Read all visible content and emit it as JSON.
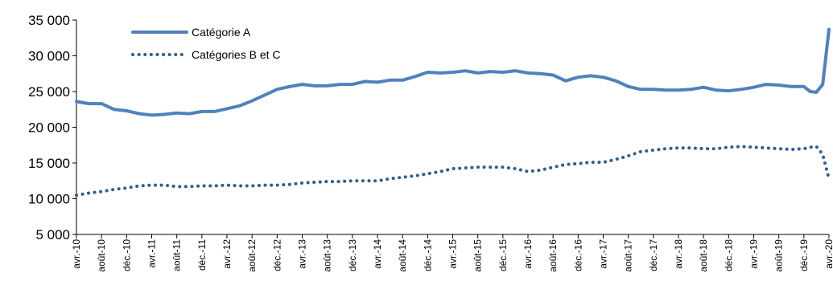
{
  "chart_data": {
    "type": "line",
    "title": "",
    "xlabel": "",
    "ylabel": "",
    "ylim": [
      5000,
      35000
    ],
    "y_ticks": [
      "5 000",
      "10 000",
      "15 000",
      "20 000",
      "25 000",
      "30 000",
      "35 000"
    ],
    "y_tick_values": [
      5000,
      10000,
      15000,
      20000,
      25000,
      30000,
      35000
    ],
    "x_tick_labels": [
      "avr.-10",
      "août-10",
      "déc.-10",
      "avr.-11",
      "août-11",
      "déc.-11",
      "avr.-12",
      "août-12",
      "déc.-12",
      "avr.-13",
      "août-13",
      "déc.-13",
      "avr.-14",
      "août-14",
      "déc.-14",
      "avr.-15",
      "août-15",
      "déc.-15",
      "avr.-16",
      "août-16",
      "déc.-16",
      "avr.-17",
      "août-17",
      "déc.-17",
      "avr.-18",
      "août-18",
      "déc.-18",
      "avr.-19",
      "août-19",
      "déc.-19",
      "avr.-20"
    ],
    "x_start": "2010-04",
    "x_end": "2020-04",
    "grid": false,
    "legend_position": "top-left",
    "series": [
      {
        "name": "Catégorie A",
        "style": "solid",
        "color": "#4f81bd",
        "x": [
          "2010-04",
          "2010-06",
          "2010-08",
          "2010-10",
          "2010-12",
          "2011-02",
          "2011-04",
          "2011-06",
          "2011-08",
          "2011-10",
          "2011-12",
          "2012-02",
          "2012-04",
          "2012-06",
          "2012-08",
          "2012-10",
          "2012-12",
          "2013-02",
          "2013-04",
          "2013-06",
          "2013-08",
          "2013-10",
          "2013-12",
          "2014-02",
          "2014-04",
          "2014-06",
          "2014-08",
          "2014-10",
          "2014-12",
          "2015-02",
          "2015-04",
          "2015-06",
          "2015-08",
          "2015-10",
          "2015-12",
          "2016-02",
          "2016-04",
          "2016-06",
          "2016-08",
          "2016-10",
          "2016-12",
          "2017-02",
          "2017-04",
          "2017-06",
          "2017-08",
          "2017-10",
          "2017-12",
          "2018-02",
          "2018-04",
          "2018-06",
          "2018-08",
          "2018-10",
          "2018-12",
          "2019-02",
          "2019-04",
          "2019-06",
          "2019-08",
          "2019-10",
          "2019-12",
          "2020-01",
          "2020-02",
          "2020-03",
          "2020-04"
        ],
        "values": [
          23600,
          23300,
          23300,
          22500,
          22300,
          21900,
          21700,
          21800,
          22000,
          21900,
          22200,
          22200,
          22600,
          23000,
          23700,
          24500,
          25300,
          25700,
          26000,
          25800,
          25800,
          26000,
          26000,
          26400,
          26300,
          26600,
          26600,
          27100,
          27700,
          27600,
          27700,
          27900,
          27600,
          27800,
          27700,
          27900,
          27600,
          27500,
          27300,
          26500,
          27000,
          27200,
          27000,
          26500,
          25700,
          25300,
          25300,
          25200,
          25200,
          25300,
          25600,
          25200,
          25100,
          25300,
          25600,
          26000,
          25900,
          25700,
          25700,
          25000,
          24900,
          26000,
          33700
        ]
      },
      {
        "name": "Catégories B et C",
        "style": "dotted",
        "color": "#2f5f8f",
        "x": [
          "2010-04",
          "2010-06",
          "2010-08",
          "2010-10",
          "2010-12",
          "2011-02",
          "2011-04",
          "2011-06",
          "2011-08",
          "2011-10",
          "2011-12",
          "2012-02",
          "2012-04",
          "2012-06",
          "2012-08",
          "2012-10",
          "2012-12",
          "2013-02",
          "2013-04",
          "2013-06",
          "2013-08",
          "2013-10",
          "2013-12",
          "2014-02",
          "2014-04",
          "2014-06",
          "2014-08",
          "2014-10",
          "2014-12",
          "2015-02",
          "2015-04",
          "2015-06",
          "2015-08",
          "2015-10",
          "2015-12",
          "2016-02",
          "2016-04",
          "2016-06",
          "2016-08",
          "2016-10",
          "2016-12",
          "2017-02",
          "2017-04",
          "2017-06",
          "2017-08",
          "2017-10",
          "2017-12",
          "2018-02",
          "2018-04",
          "2018-06",
          "2018-08",
          "2018-10",
          "2018-12",
          "2019-02",
          "2019-04",
          "2019-06",
          "2019-08",
          "2019-10",
          "2019-12",
          "2020-01",
          "2020-02",
          "2020-03",
          "2020-04"
        ],
        "values": [
          10500,
          10800,
          11000,
          11300,
          11500,
          11800,
          11900,
          11900,
          11700,
          11700,
          11800,
          11800,
          11900,
          11800,
          11800,
          11900,
          11900,
          12000,
          12200,
          12300,
          12400,
          12400,
          12500,
          12500,
          12500,
          12800,
          13000,
          13200,
          13500,
          13800,
          14200,
          14300,
          14400,
          14400,
          14400,
          14200,
          13800,
          14000,
          14400,
          14800,
          14900,
          15100,
          15100,
          15500,
          16000,
          16600,
          16800,
          17000,
          17100,
          17100,
          17000,
          17000,
          17200,
          17300,
          17200,
          17100,
          17000,
          16900,
          17000,
          17200,
          17300,
          16200,
          12800
        ]
      }
    ]
  }
}
